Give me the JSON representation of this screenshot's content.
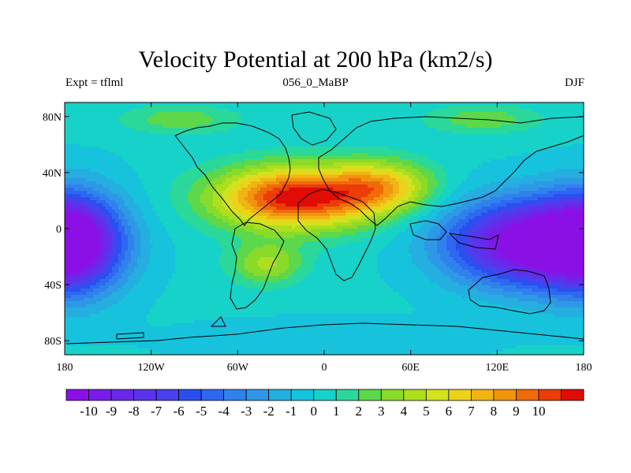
{
  "title": "Velocity Potential at 200 hPa (km2/s)",
  "left_label": "Expt = tflml",
  "center_label": "056_0_MaBP",
  "right_label": "DJF",
  "lat_ticks": [
    "80N",
    "40N",
    "0",
    "40S",
    "80S"
  ],
  "lon_ticks": [
    "180",
    "120W",
    "60W",
    "0",
    "60E",
    "120E",
    "180"
  ],
  "colorbar": {
    "labels": [
      "-10",
      "-9",
      "-8",
      "-7",
      "-6",
      "-5",
      "-4",
      "-3",
      "-2",
      "-1",
      "0",
      "1",
      "2",
      "3",
      "4",
      "5",
      "6",
      "7",
      "8",
      "9",
      "10"
    ],
    "colors": [
      "#8a10e6",
      "#7a1ce8",
      "#6a28ea",
      "#5a34ec",
      "#4a40ee",
      "#2a4ff0",
      "#2f68f0",
      "#2f82ec",
      "#2f98e6",
      "#25aee0",
      "#17c2dc",
      "#17d2c8",
      "#2ad89a",
      "#5cd84a",
      "#8ada2a",
      "#aede1e",
      "#d2e21e",
      "#ecd21a",
      "#f0b414",
      "#f2940e",
      "#f06a0a",
      "#ec3c08",
      "#e20c06"
    ]
  },
  "field_centers": [
    {
      "lon": -20,
      "lat": 22,
      "amp": 11.5,
      "sx": 55,
      "sy": 22
    },
    {
      "lon": 40,
      "lat": 30,
      "amp": 6,
      "sx": 35,
      "sy": 18
    },
    {
      "lon": -40,
      "lat": -25,
      "amp": 4,
      "sx": 25,
      "sy": 15
    },
    {
      "lon": 140,
      "lat": -10,
      "amp": -11.5,
      "sx": 55,
      "sy": 30
    },
    {
      "lon": -175,
      "lat": -10,
      "amp": -10,
      "sx": 35,
      "sy": 35
    },
    {
      "lon": 0,
      "lat": -80,
      "amp": -1,
      "sx": 100,
      "sy": 15
    },
    {
      "lon": 110,
      "lat": 78,
      "amp": 2.5,
      "sx": 40,
      "sy": 10
    },
    {
      "lon": -100,
      "lat": 78,
      "amp": 2.5,
      "sx": 40,
      "sy": 10
    }
  ],
  "field_base": 0.2
}
